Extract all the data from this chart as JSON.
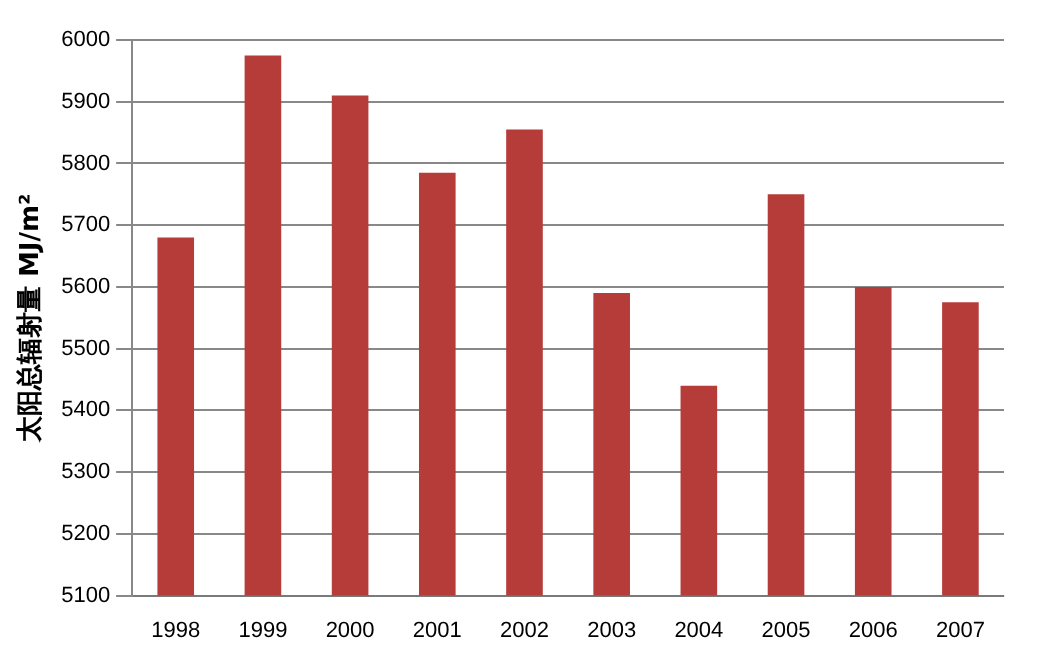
{
  "chart_data": {
    "type": "bar",
    "ylabel": "太阳总辐射量 MJ/m²",
    "categories": [
      "1998",
      "1999",
      "2000",
      "2001",
      "2002",
      "2003",
      "2004",
      "2005",
      "2006",
      "2007"
    ],
    "series": [
      {
        "color": "#b63c3a",
        "values": [
          5680,
          5975,
          5910,
          5785,
          5855,
          5590,
          5440,
          5750,
          5600,
          5575
        ]
      }
    ],
    "ylim": [
      5100,
      6000
    ],
    "yticks": [
      5100,
      5200,
      5300,
      5400,
      5500,
      5600,
      5700,
      5800,
      5900,
      6000
    ],
    "grid": "y",
    "legend": false
  }
}
